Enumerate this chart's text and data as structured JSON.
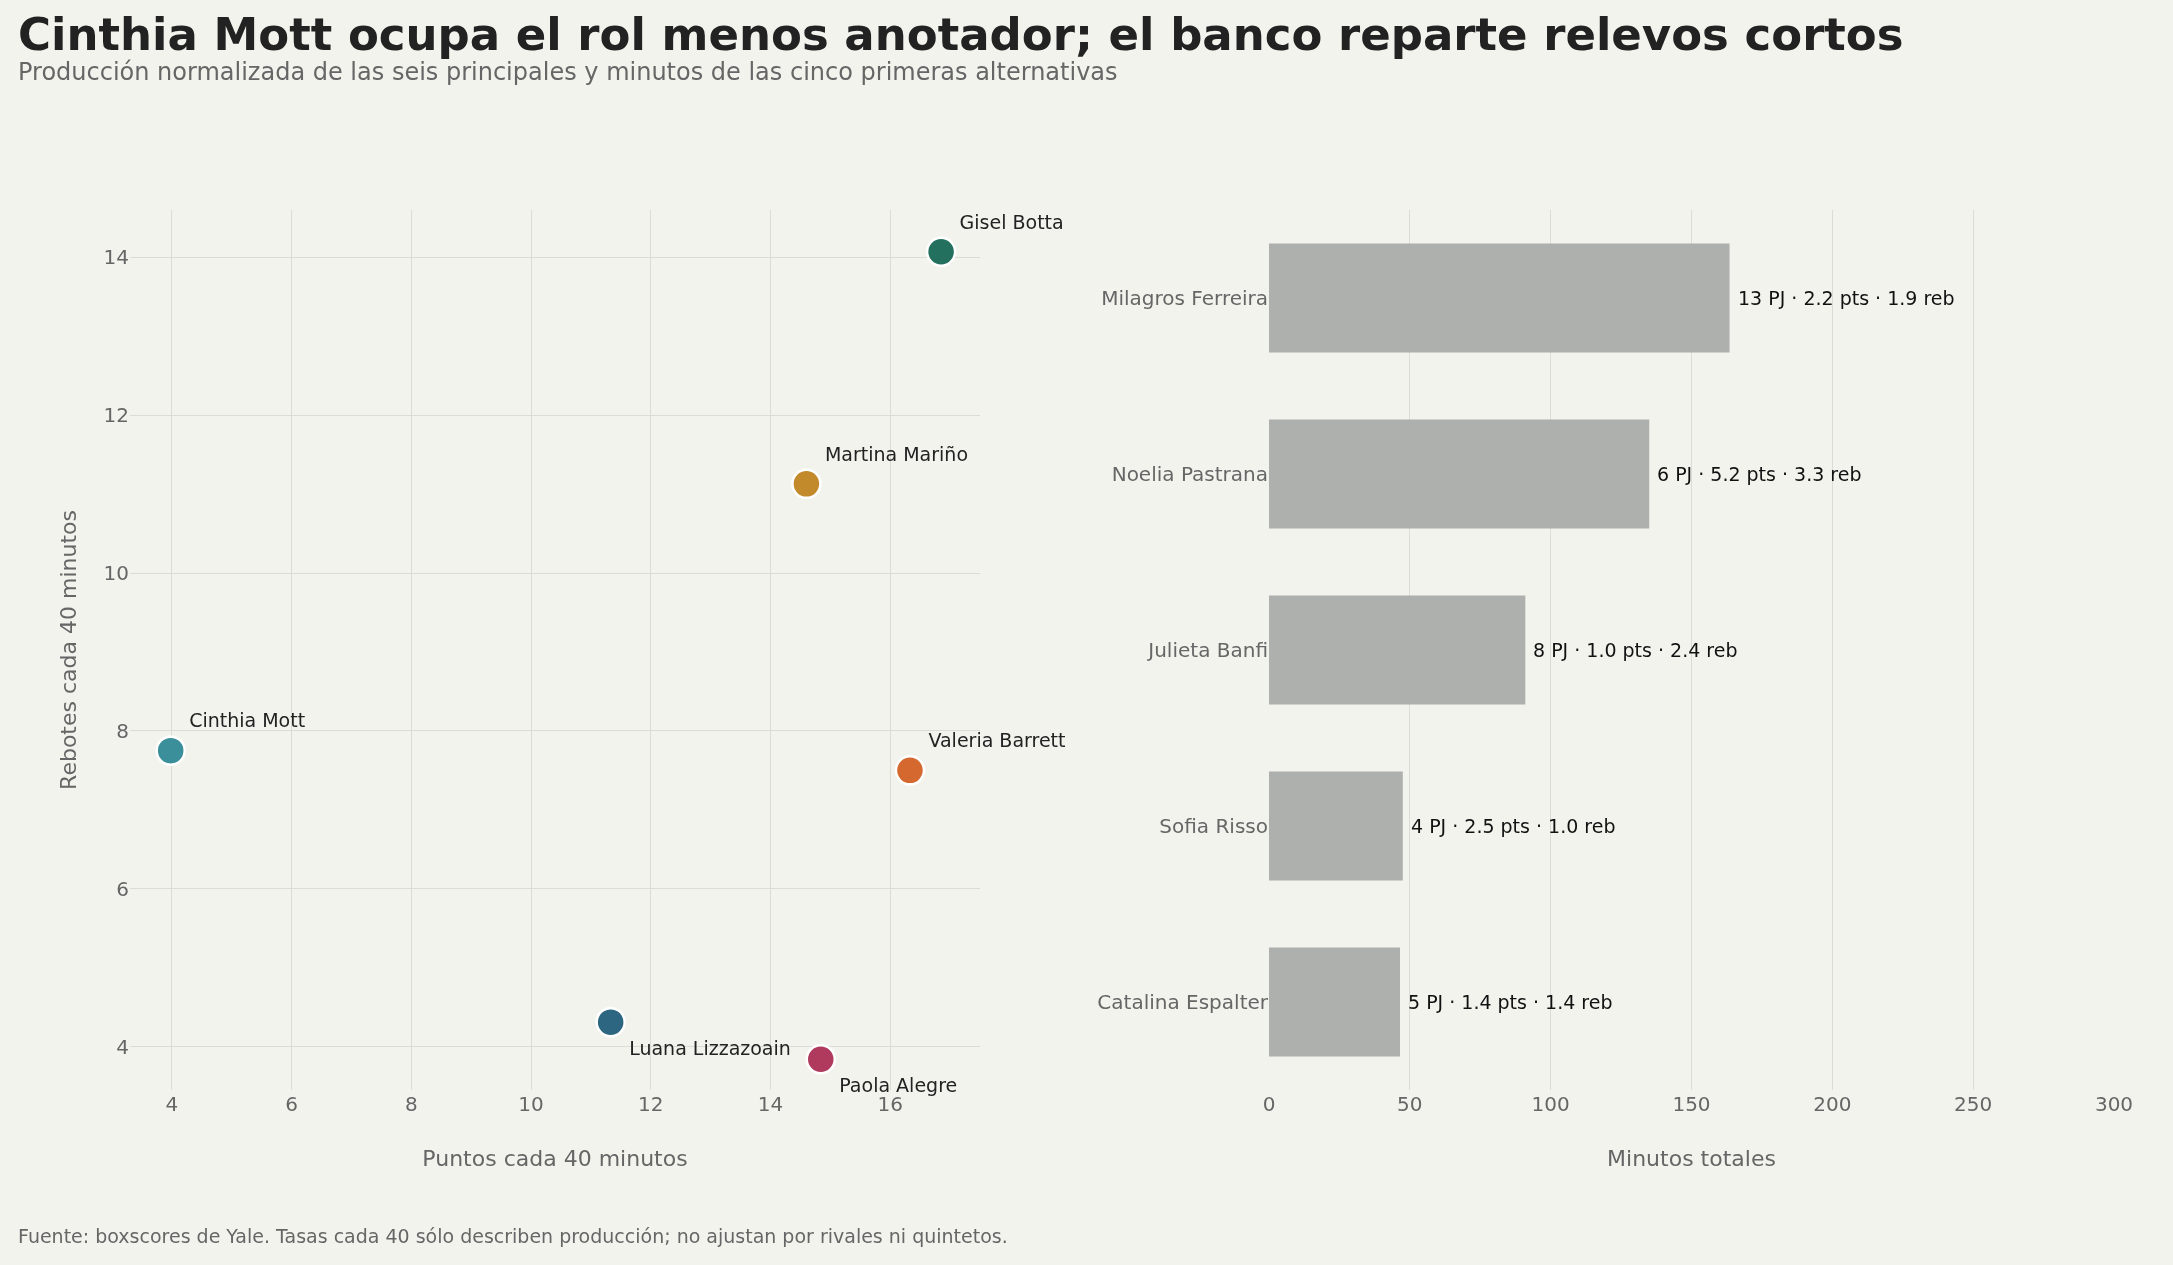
{
  "chart_data": [
    {
      "type": "scatter",
      "title": "Cinthia Mott ocupa el rol menos anotador; el banco reparte relevos cortos",
      "subtitle": "Producción normalizada de las seis principales y minutos de las cinco primeras alternativas",
      "xlabel": "Puntos cada 40 minutos",
      "ylabel": "Rebotes cada 40 minutos",
      "xlim": [
        3.3,
        17.5
      ],
      "xticks": [
        4,
        6,
        8,
        10,
        12,
        14,
        16
      ],
      "ylim": [
        3.45,
        14.6
      ],
      "yticks": [
        4,
        6,
        8,
        10,
        12,
        14
      ],
      "grid": true,
      "legend": false,
      "marker": "circle",
      "series": [
        {
          "name": "Gisel Botta",
          "color": "#23705e",
          "x": [
            16.85
          ],
          "values": [
            14.07
          ]
        },
        {
          "name": "Martina Mariño",
          "color": "#c28a2a",
          "x": [
            14.6
          ],
          "values": [
            11.13
          ]
        },
        {
          "name": "Cinthia Mott",
          "color": "#3a8f9a",
          "x": [
            3.98
          ],
          "values": [
            7.75
          ]
        },
        {
          "name": "Valeria Barrett",
          "color": "#d4682e",
          "x": [
            16.33
          ],
          "values": [
            7.5
          ]
        },
        {
          "name": "Luana Lizzazoain",
          "color": "#2d6680",
          "x": [
            11.33
          ],
          "values": [
            4.31
          ]
        },
        {
          "name": "Paola Alegre",
          "color": "#b03a5e",
          "x": [
            14.84
          ],
          "values": [
            3.84
          ]
        }
      ]
    },
    {
      "type": "bar",
      "orientation": "horizontal",
      "xlabel": "Minutos totales",
      "categories": [
        "Milagros Ferreira",
        "Noelia Pastrana",
        "Julieta Banfi",
        "Sofia Risso",
        "Catalina Espalter"
      ],
      "values": [
        163.5,
        135,
        91,
        47.5,
        46.5
      ],
      "color": "#adb0ad",
      "xlim": [
        0,
        300
      ],
      "xticks": [
        0,
        50,
        100,
        150,
        200,
        250,
        300
      ],
      "grid": "x",
      "legend": false,
      "annotations": [
        {
          "text": "13 PJ · 2.2 pts · 1.9 reb",
          "x": 163.5,
          "y": "Milagros Ferreira"
        },
        {
          "text": "6 PJ · 5.2 pts · 3.3 reb",
          "x": 135,
          "y": "Noelia Pastrana"
        },
        {
          "text": "8 PJ · 1.0 pts · 2.4 reb",
          "x": 91,
          "y": "Julieta Banfi"
        },
        {
          "text": "4 PJ · 2.5 pts · 1.0 reb",
          "x": 47.5,
          "y": "Sofia Risso"
        },
        {
          "text": "5 PJ · 1.4 pts · 1.4 reb",
          "x": 46.5,
          "y": "Catalina Espalter"
        },
        "Fuente: boxscores de Yale. Tasas cada 40 sólo describen producción; no ajustan por rivales ni quintetos."
      ]
    }
  ]
}
